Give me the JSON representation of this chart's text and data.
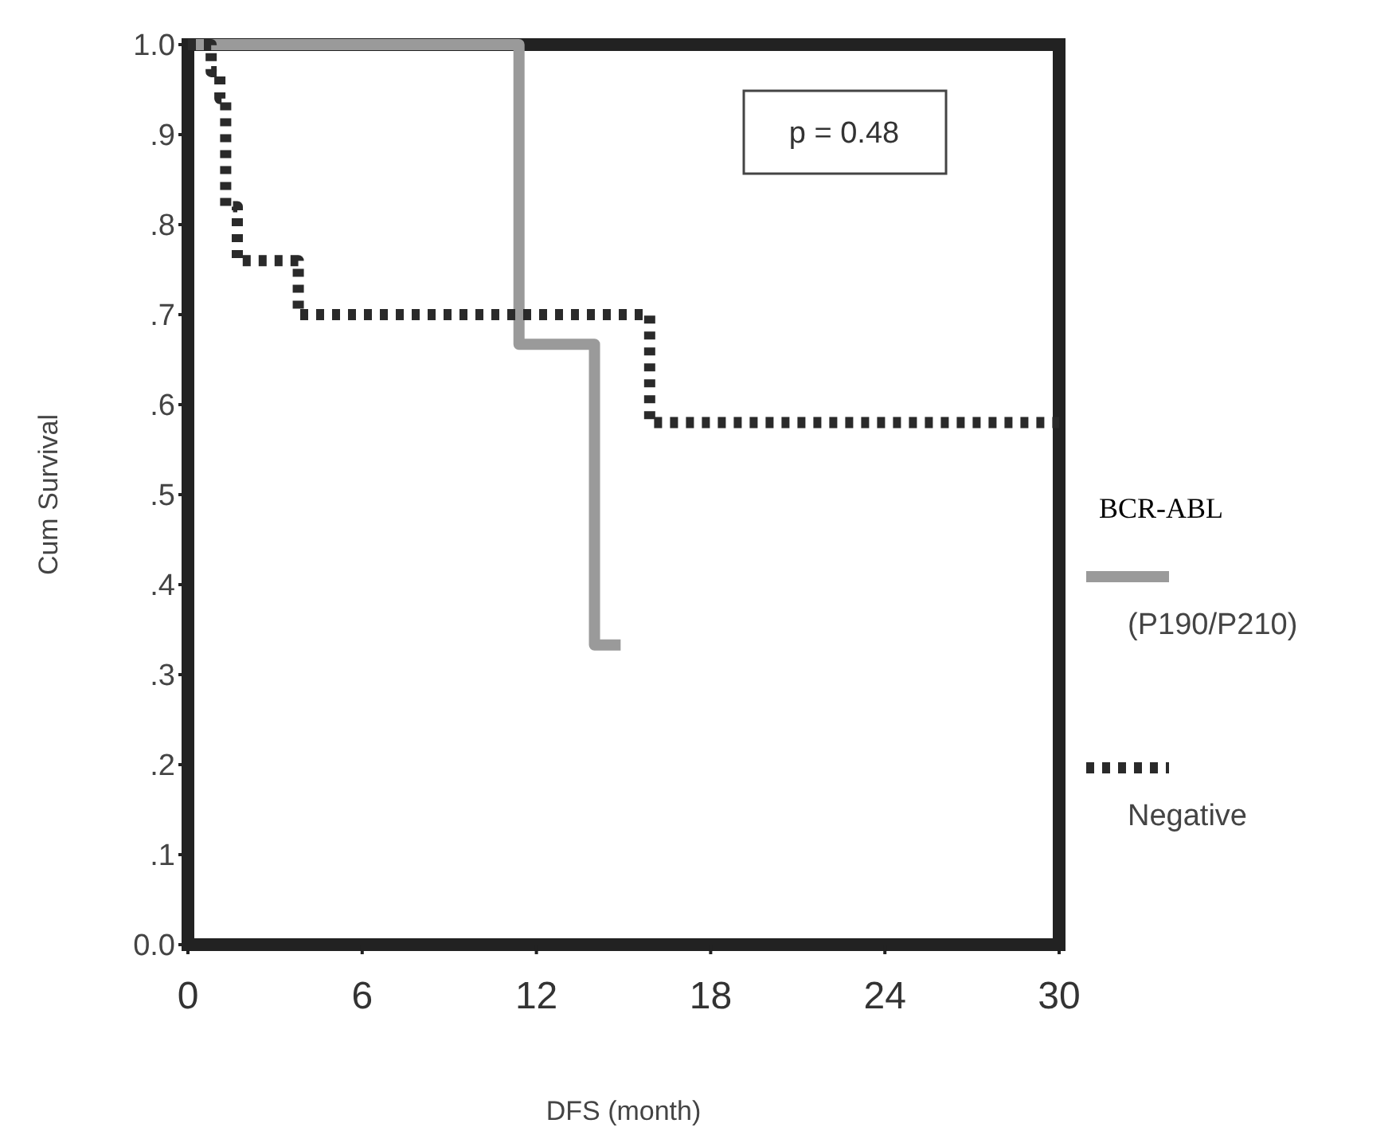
{
  "chart_data": {
    "type": "step",
    "xlabel": "DFS (month)",
    "ylabel": "Cum Survival",
    "legend_title": "BCR-ABL",
    "legend": "right",
    "annotations": [
      "p = 0.48"
    ],
    "xlim": [
      0,
      30
    ],
    "xticks": [
      0,
      6,
      12,
      18,
      24,
      30
    ],
    "ylim": [
      0,
      1
    ],
    "yticks": [
      {
        "value": 0,
        "label": "0.0"
      },
      {
        "value": 0.1,
        "label": ".1"
      },
      {
        "value": 0.2,
        "label": ".2"
      },
      {
        "value": 0.3,
        "label": ".3"
      },
      {
        "value": 0.4,
        "label": ".4"
      },
      {
        "value": 0.5,
        "label": ".5"
      },
      {
        "value": 0.6,
        "label": ".6"
      },
      {
        "value": 0.7,
        "label": ".7"
      },
      {
        "value": 0.8,
        "label": ".8"
      },
      {
        "value": 0.9,
        "label": ".9"
      },
      {
        "value": 1,
        "label": "1.0"
      }
    ],
    "grid": false,
    "series": [
      {
        "name": "(P190/P210)",
        "color": "#9a9a9a",
        "line_style": "solid",
        "x": [
          0,
          11.4,
          14.0,
          14.9
        ],
        "values": [
          1.0,
          0.667,
          0.333,
          0.333
        ]
      },
      {
        "name": "Negative",
        "color": "#2a2a2a",
        "line_style": "dotted",
        "x": [
          0,
          0.8,
          1.1,
          1.3,
          1.7,
          3.8,
          15.9,
          30
        ],
        "values": [
          1.0,
          0.97,
          0.94,
          0.82,
          0.76,
          0.7,
          0.58,
          0.58
        ]
      }
    ]
  }
}
